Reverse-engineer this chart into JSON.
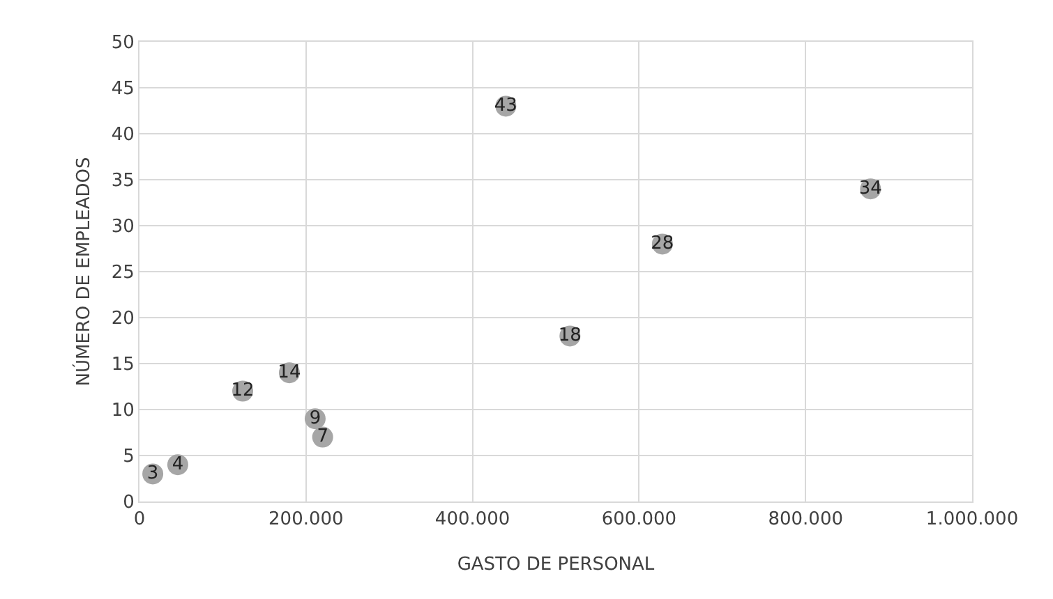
{
  "chart_data": {
    "type": "scatter",
    "xlabel": "GASTO DE PERSONAL",
    "ylabel": "NÚMERO DE EMPLEADOS",
    "x": [
      16000,
      46000,
      124000,
      180000,
      211000,
      220000,
      440000,
      517000,
      628000,
      878000
    ],
    "values": [
      3,
      4,
      12,
      14,
      9,
      7,
      43,
      18,
      28,
      34
    ],
    "color": "#a6a6a6",
    "marker": "circle",
    "data_labels": true,
    "grid": true,
    "legend": false,
    "xlim": [
      0,
      1000000
    ],
    "ylim": [
      0,
      50
    ],
    "xticks": [
      0,
      {
        "value": 200000,
        "label": "200.000"
      },
      {
        "value": 400000,
        "label": "400.000"
      },
      {
        "value": 600000,
        "label": "600.000"
      },
      {
        "value": 800000,
        "label": "800.000"
      },
      {
        "value": 1000000,
        "label": "1.000.000"
      }
    ],
    "yticks": [
      0,
      5,
      10,
      15,
      20,
      25,
      30,
      35,
      40,
      45,
      50
    ]
  }
}
